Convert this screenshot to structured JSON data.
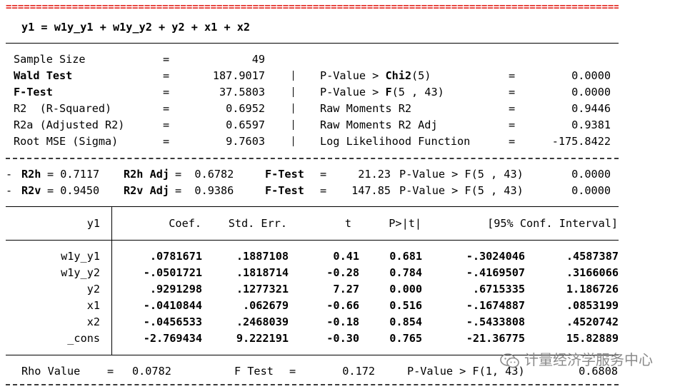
{
  "equation": "y1 = w1y_y1 + w1y_y2 + y2 + x1 + x2",
  "stats_left": [
    {
      "label": "Sample Size",
      "bold": false,
      "value": "49"
    },
    {
      "label": "Wald Test",
      "bold": true,
      "value": "187.9017"
    },
    {
      "label": "F-Test",
      "bold": true,
      "value": "37.5803"
    },
    {
      "label": "R2  (R-Squared)",
      "bold": false,
      "value": "0.6952"
    },
    {
      "label": "R2a (Adjusted R2)",
      "bold": false,
      "value": "0.6597"
    },
    {
      "label": "Root MSE (Sigma)",
      "bold": false,
      "value": "9.7603"
    }
  ],
  "stats_right": [
    {
      "pre": "P-Value > ",
      "bold": "Chi2",
      "post": "(5)",
      "value": "0.0000"
    },
    {
      "pre": "P-Value > ",
      "bold": "F",
      "post": "(5 , 43)",
      "value": "0.0000"
    },
    {
      "pre": "Raw Moments R2",
      "bold": "",
      "post": "",
      "value": "0.9446"
    },
    {
      "pre": "Raw Moments R2 Adj",
      "bold": "",
      "post": "",
      "value": "0.9381"
    },
    {
      "pre": "Log Likelihood Function",
      "bold": "",
      "post": "",
      "value": "-175.8422"
    }
  ],
  "r2_rows": [
    {
      "label": "R2h",
      "value": "0.7117",
      "adj_label": "R2h Adj",
      "adj_value": "0.6782",
      "ftest": "21.23",
      "pvalue_label": "P-Value > F(5 , 43)",
      "pvalue": "0.0000"
    },
    {
      "label": "R2v",
      "value": "0.9450",
      "adj_label": "R2v Adj",
      "adj_value": "0.9386",
      "ftest": "147.85",
      "pvalue_label": "P-Value > F(5 , 43)",
      "pvalue": "0.0000"
    }
  ],
  "ftest_label": "F-Test",
  "table": {
    "depvar": "y1",
    "headers": [
      "Coef.",
      "Std. Err.",
      "t",
      "P>|t|",
      "[95% Conf. Interval]"
    ],
    "rows": [
      {
        "var": "w1y_y1",
        "coef": ".0781671",
        "se": ".1887108",
        "t": "0.41",
        "p": "0.681",
        "lo": "-.3024046",
        "hi": ".4587387"
      },
      {
        "var": "w1y_y2",
        "coef": "-.0501721",
        "se": ".1818714",
        "t": "-0.28",
        "p": "0.784",
        "lo": "-.4169507",
        "hi": ".3166066"
      },
      {
        "var": "y2",
        "coef": ".9291298",
        "se": ".1277321",
        "t": "7.27",
        "p": "0.000",
        "lo": ".6715335",
        "hi": "1.186726"
      },
      {
        "var": "x1",
        "coef": "-.0410844",
        "se": ".062679",
        "t": "-0.66",
        "p": "0.516",
        "lo": "-.1674887",
        "hi": ".0853199"
      },
      {
        "var": "x2",
        "coef": "-.0456533",
        "se": ".2468039",
        "t": "-0.18",
        "p": "0.854",
        "lo": "-.5433808",
        "hi": ".4520742"
      },
      {
        "var": "_cons",
        "coef": "-2.769434",
        "se": "9.222191",
        "t": "-0.30",
        "p": "0.765",
        "lo": "-21.36775",
        "hi": "15.82889"
      }
    ]
  },
  "footer": {
    "rho_label": "Rho Value",
    "rho_value": "0.0782",
    "ftest_label": "F Test",
    "ftest_value": "0.172",
    "pvalue_label": "P-Value > F(1, 43)",
    "pvalue": "0.6808"
  },
  "watermark": "计量经济学服务中心",
  "colors": {
    "rule_red": "#e3261f",
    "watermark": "#8a8a8a"
  }
}
